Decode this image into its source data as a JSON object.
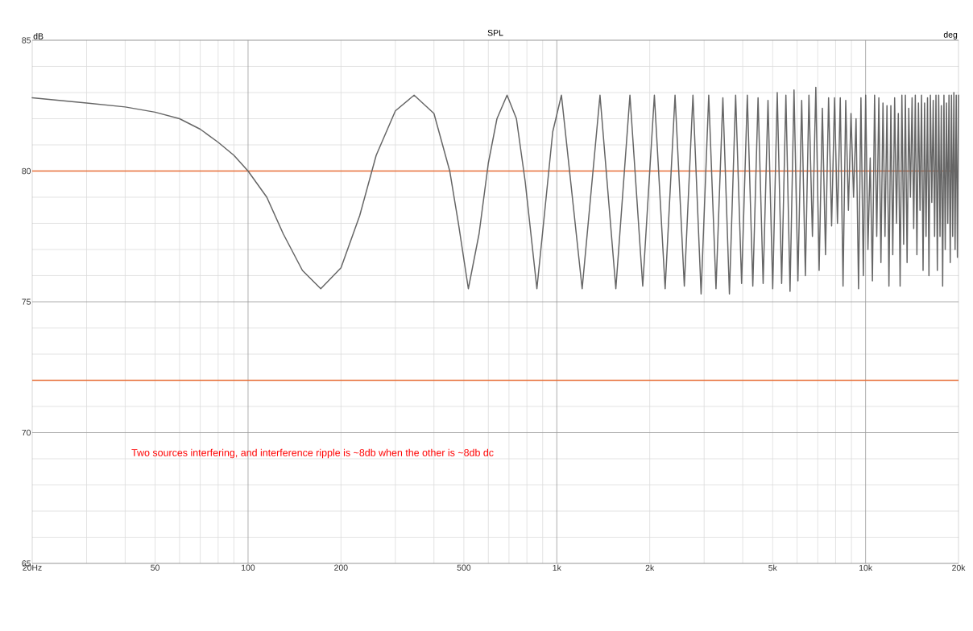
{
  "chart_data": {
    "type": "line",
    "title": "SPL",
    "ylabel": "dB",
    "y2label": "deg",
    "annotations": [
      "Two sources interfering, and interference ripple is ~8db when the other is ~8db dc"
    ],
    "log": "x",
    "xlim": [
      20,
      20000
    ],
    "ylim": [
      65,
      85
    ],
    "xticks": [
      {
        "value": 20,
        "label": "20Hz"
      },
      50,
      100,
      200,
      500,
      {
        "value": 1000,
        "label": "1k"
      },
      {
        "value": 2000,
        "label": "2k"
      },
      {
        "value": 5000,
        "label": "5k"
      },
      {
        "value": 10000,
        "label": "10k"
      },
      {
        "value": 20000,
        "label": "20k"
      }
    ],
    "yticks": [
      65,
      70,
      75,
      80,
      85
    ],
    "grid": true,
    "line_style": "solid",
    "ref_lines": [
      {
        "axis": "y",
        "value": 80,
        "color": "#e8703a"
      },
      {
        "axis": "y",
        "value": 72,
        "color": "#e8703a"
      }
    ],
    "series": [
      {
        "color": "#666666",
        "x": [
          20,
          30,
          40,
          50,
          60,
          70,
          80,
          90,
          100,
          115,
          130,
          150,
          172,
          200,
          230,
          260,
          300,
          345,
          400,
          450,
          480,
          517,
          560,
          600,
          640,
          690,
          740,
          790,
          862,
          920,
          970,
          1035,
          1208,
          1380,
          1553,
          1725,
          1898,
          2070,
          2243,
          2415,
          2588,
          2760,
          2933,
          3105,
          3278,
          3450,
          3623,
          3795,
          3968,
          4140,
          4313,
          4485,
          4658,
          4830,
          5003,
          5175,
          5348,
          5520,
          5693,
          5865,
          6038,
          6210,
          6383,
          6555,
          6728,
          6900,
          7073,
          7245,
          7418,
          7590,
          7763,
          7935,
          8108,
          8280,
          8453,
          8625,
          8798,
          8970,
          9143,
          9315,
          9488,
          9660,
          9833,
          10005,
          10178,
          10350,
          10523,
          10695,
          10868,
          11040,
          11213,
          11385,
          11558,
          11730,
          11903,
          12075,
          12248,
          12420,
          12593,
          12765,
          12938,
          13110,
          13283,
          13455,
          13628,
          13800,
          13973,
          14145,
          14318,
          14490,
          14663,
          14835,
          15008,
          15180,
          15353,
          15525,
          15698,
          15870,
          16043,
          16215,
          16388,
          16560,
          16733,
          16905,
          17078,
          17250,
          17423,
          17595,
          17768,
          17940,
          18113,
          18285,
          18458,
          18630,
          18803,
          18975,
          19148,
          19320,
          19493,
          19665,
          19838,
          20000
        ],
        "values": [
          82.8,
          82.6,
          82.45,
          82.25,
          82.0,
          81.6,
          81.1,
          80.6,
          80.0,
          79.0,
          77.6,
          76.2,
          75.5,
          76.3,
          78.3,
          80.6,
          82.3,
          82.9,
          82.2,
          80.0,
          78.0,
          75.5,
          77.6,
          80.3,
          82.0,
          82.9,
          82.0,
          79.6,
          75.5,
          78.8,
          81.5,
          82.9,
          75.5,
          82.9,
          75.5,
          82.9,
          75.6,
          82.9,
          75.5,
          82.9,
          75.6,
          82.9,
          75.3,
          82.9,
          75.5,
          82.8,
          75.3,
          82.9,
          75.7,
          82.9,
          75.6,
          82.8,
          75.7,
          82.7,
          75.5,
          83.0,
          75.7,
          82.9,
          75.4,
          83.1,
          75.8,
          82.7,
          76.0,
          82.9,
          77.5,
          83.2,
          76.2,
          82.4,
          76.8,
          82.8,
          77.9,
          82.8,
          78.0,
          82.8,
          75.6,
          82.7,
          78.5,
          82.2,
          79.0,
          82.0,
          75.5,
          82.8,
          76.0,
          82.9,
          77.0,
          80.5,
          75.8,
          82.9,
          77.5,
          82.8,
          76.5,
          82.6,
          77.5,
          82.5,
          75.6,
          82.5,
          76.8,
          82.8,
          78.0,
          82.2,
          75.6,
          82.9,
          77.2,
          82.9,
          76.5,
          82.4,
          79.0,
          82.8,
          77.8,
          82.9,
          76.8,
          82.6,
          78.5,
          82.9,
          76.2,
          82.6,
          77.5,
          82.8,
          76.0,
          82.9,
          78.8,
          82.7,
          77.5,
          82.9,
          76.2,
          82.9,
          77.5,
          82.5,
          75.6,
          82.9,
          77.0,
          82.6,
          78.0,
          82.9,
          76.5,
          82.9,
          77.5,
          83.0,
          77.0,
          82.9,
          76.7,
          82.9
        ]
      }
    ]
  }
}
